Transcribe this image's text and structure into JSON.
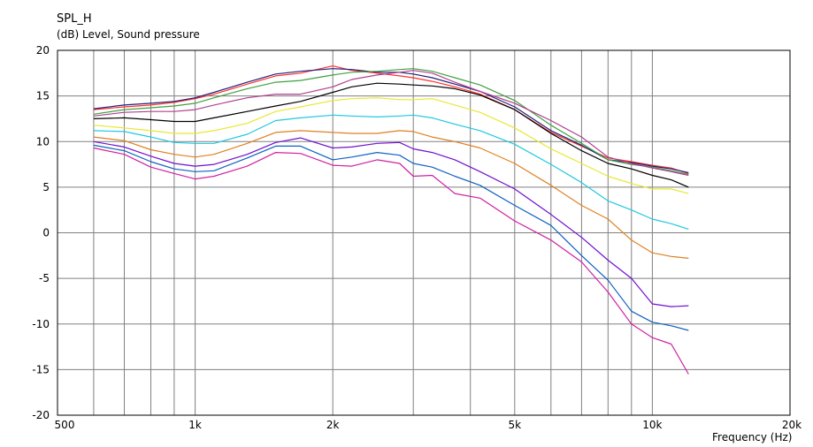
{
  "chart_data": {
    "type": "line",
    "title": "SPL_H",
    "ylabel": "(dB)  Level, Sound pressure",
    "xlabel": "Frequency  (Hz)",
    "xscale": "log",
    "xlim": [
      500,
      20000
    ],
    "ylim": [
      -20,
      20
    ],
    "grid": true,
    "legend": "none",
    "x_ticks": [
      {
        "value": 500,
        "label": "500"
      },
      {
        "value": 1000,
        "label": "1k"
      },
      {
        "value": 2000,
        "label": "2k"
      },
      {
        "value": 5000,
        "label": "5k"
      },
      {
        "value": 10000,
        "label": "10k"
      },
      {
        "value": 20000,
        "label": "20k"
      }
    ],
    "y_ticks": [
      {
        "value": 20,
        "label": "20"
      },
      {
        "value": 15,
        "label": "15"
      },
      {
        "value": 10,
        "label": "10"
      },
      {
        "value": 5,
        "label": "5"
      },
      {
        "value": 0,
        "label": "0"
      },
      {
        "value": -5,
        "label": "-5"
      },
      {
        "value": -10,
        "label": "-10"
      },
      {
        "value": -15,
        "label": "-15"
      },
      {
        "value": -20,
        "label": "-20"
      }
    ],
    "x_gridlines": [
      600,
      700,
      800,
      900,
      1000,
      2000,
      3000,
      4000,
      5000,
      6000,
      7000,
      8000,
      9000,
      10000
    ],
    "x": [
      600,
      700,
      800,
      900,
      1000,
      1100,
      1300,
      1500,
      1700,
      2000,
      2200,
      2500,
      2800,
      3000,
      3300,
      3700,
      4200,
      5000,
      6000,
      7000,
      8000,
      9000,
      10000,
      11000,
      12000
    ],
    "series": [
      {
        "color": "#ff3030",
        "values": [
          13.5,
          13.8,
          14.0,
          14.3,
          14.7,
          15.2,
          16.3,
          17.2,
          17.5,
          18.3,
          17.8,
          17.5,
          17.2,
          17.0,
          16.6,
          16.0,
          15.2,
          13.5,
          11.0,
          9.5,
          8.2,
          7.8,
          7.4,
          7.1,
          6.5
        ]
      },
      {
        "color": "#20207a",
        "values": [
          13.6,
          14.0,
          14.2,
          14.4,
          14.8,
          15.4,
          16.5,
          17.4,
          17.7,
          18.0,
          17.9,
          17.6,
          17.6,
          17.4,
          17.0,
          16.3,
          15.5,
          13.8,
          11.2,
          9.6,
          8.0,
          7.7,
          7.3,
          7.0,
          6.6
        ]
      },
      {
        "color": "#40a040",
        "values": [
          13.0,
          13.5,
          13.7,
          13.9,
          14.2,
          14.8,
          15.8,
          16.5,
          16.7,
          17.3,
          17.6,
          17.7,
          17.9,
          18.0,
          17.7,
          17.0,
          16.2,
          14.5,
          11.8,
          9.8,
          8.0,
          7.5,
          7.2,
          6.8,
          6.4
        ]
      },
      {
        "color": "#b04090",
        "values": [
          12.8,
          13.2,
          13.3,
          13.3,
          13.5,
          14.0,
          14.8,
          15.2,
          15.2,
          16.0,
          16.8,
          17.3,
          17.6,
          17.8,
          17.5,
          16.5,
          15.5,
          14.2,
          12.3,
          10.5,
          8.3,
          7.6,
          7.1,
          6.7,
          6.3
        ]
      },
      {
        "color": "#000000",
        "values": [
          12.5,
          12.6,
          12.4,
          12.2,
          12.2,
          12.6,
          13.3,
          13.9,
          14.4,
          15.4,
          16.0,
          16.4,
          16.3,
          16.2,
          16.1,
          15.8,
          15.1,
          13.5,
          10.9,
          9.0,
          7.6,
          7.0,
          6.3,
          5.8,
          5.0
        ]
      },
      {
        "color": "#e8e830",
        "values": [
          11.8,
          11.5,
          11.2,
          10.9,
          10.9,
          11.2,
          12.0,
          13.3,
          13.8,
          14.5,
          14.7,
          14.8,
          14.6,
          14.6,
          14.7,
          14.0,
          13.2,
          11.5,
          9.2,
          7.6,
          6.2,
          5.4,
          4.8,
          4.8,
          4.3
        ]
      },
      {
        "color": "#20c8e0",
        "values": [
          11.2,
          11.1,
          10.5,
          9.9,
          9.8,
          9.8,
          10.8,
          12.3,
          12.6,
          12.9,
          12.8,
          12.7,
          12.8,
          12.9,
          12.6,
          11.9,
          11.2,
          9.7,
          7.5,
          5.5,
          3.5,
          2.5,
          1.5,
          1.0,
          0.4
        ]
      },
      {
        "color": "#e08020",
        "values": [
          10.5,
          10.1,
          9.1,
          8.6,
          8.3,
          8.6,
          9.8,
          11.0,
          11.2,
          11.0,
          10.9,
          10.9,
          11.2,
          11.1,
          10.5,
          10.0,
          9.3,
          7.6,
          5.2,
          3.0,
          1.5,
          -0.8,
          -2.2,
          -2.6,
          -2.8
        ]
      },
      {
        "color": "#7010d0",
        "values": [
          10.0,
          9.4,
          8.4,
          7.6,
          7.3,
          7.5,
          8.6,
          9.9,
          10.4,
          9.3,
          9.4,
          9.8,
          9.9,
          9.2,
          8.8,
          8.0,
          6.7,
          4.8,
          2.0,
          -0.5,
          -3.0,
          -5.0,
          -7.8,
          -8.1,
          -8.0
        ]
      },
      {
        "color": "#1060c0",
        "values": [
          9.6,
          9.0,
          7.8,
          7.0,
          6.7,
          6.8,
          8.2,
          9.5,
          9.5,
          8.0,
          8.3,
          8.8,
          8.5,
          7.6,
          7.2,
          6.2,
          5.2,
          3.0,
          0.8,
          -2.5,
          -5.2,
          -8.6,
          -9.8,
          -10.2,
          -10.7
        ]
      },
      {
        "color": "#d020a0",
        "values": [
          9.3,
          8.6,
          7.2,
          6.5,
          5.9,
          6.2,
          7.3,
          8.8,
          8.7,
          7.4,
          7.3,
          8.0,
          7.6,
          6.2,
          6.3,
          4.3,
          3.8,
          1.3,
          -0.8,
          -3.2,
          -6.5,
          -10.0,
          -11.5,
          -12.2,
          -15.5
        ]
      }
    ]
  }
}
